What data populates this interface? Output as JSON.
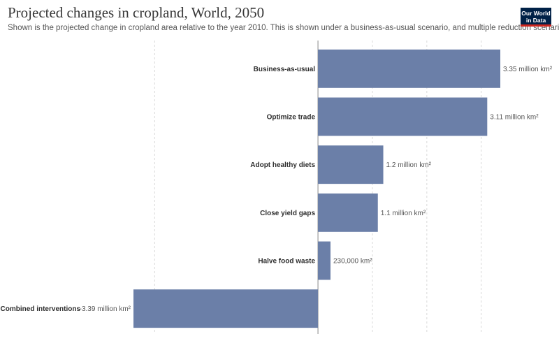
{
  "chart_data": {
    "type": "bar",
    "orientation": "horizontal",
    "title": "Projected changes in cropland, World, 2050",
    "subtitle": "Shown is the projected change in cropland area relative to the year 2010. This is shown under a business-as-usual scenario, and multiple reduction scenarios.",
    "categories": [
      "Business-as-usual",
      "Optimize trade",
      "Adopt healthy diets",
      "Close yield gaps",
      "Halve food waste",
      "Combined interventions"
    ],
    "values": [
      3.35,
      3.11,
      1.2,
      1.1,
      0.23,
      -3.39
    ],
    "value_labels": [
      "3.35 million km²",
      "3.11 million km²",
      "1.2 million km²",
      "1.1 million km²",
      "230,000 km²",
      "-3.39 million km²"
    ],
    "unit": "million km²",
    "xlim": [
      -3.39,
      3.35
    ],
    "gridlines": [
      -3,
      0,
      1,
      2,
      3
    ],
    "grid": true,
    "bar_color": "#6b7fa8"
  },
  "logo": {
    "line1": "Our World",
    "line2": "in Data"
  }
}
